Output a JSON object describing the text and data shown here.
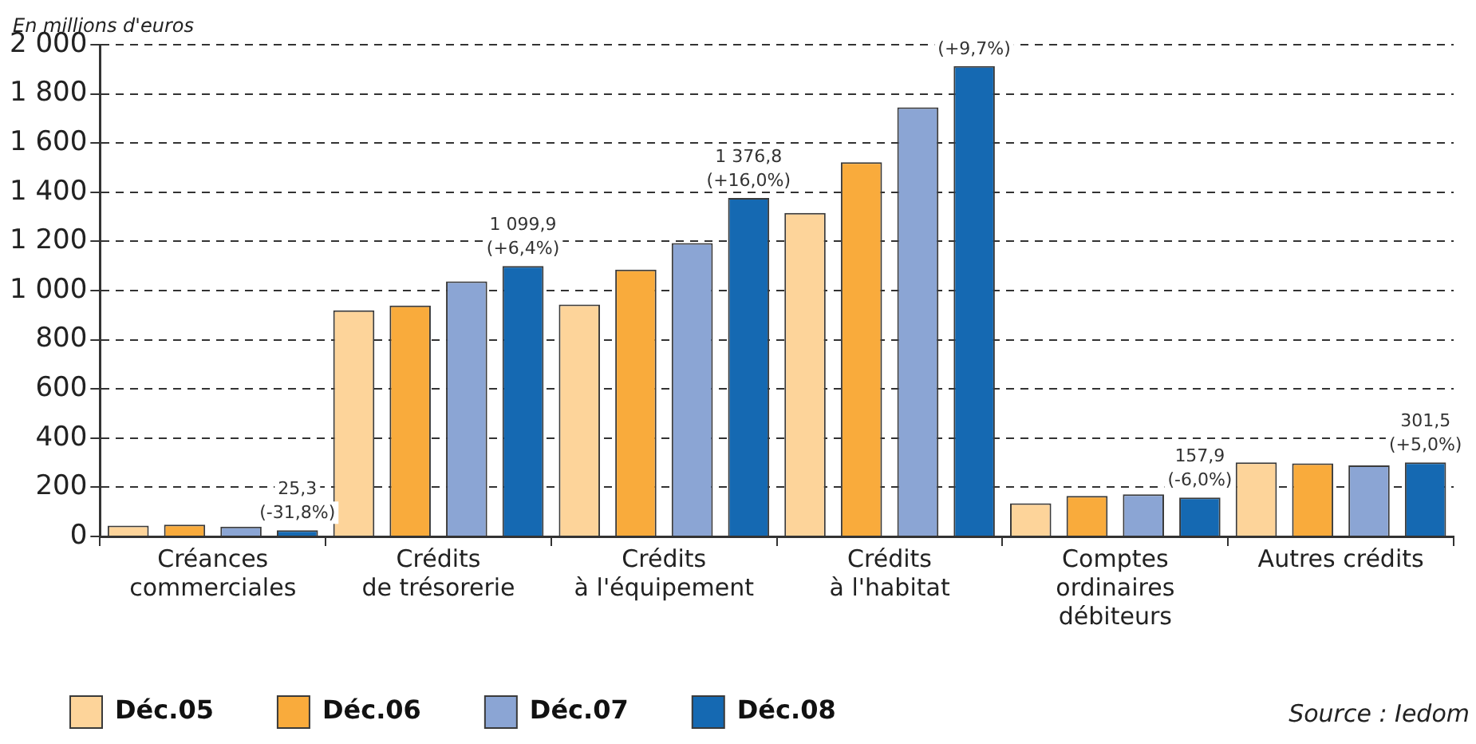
{
  "chart_data": {
    "type": "bar",
    "ylabel": "En millions d'euros",
    "categories": [
      "Créances\ncommerciales",
      "Crédits\nde trésorerie",
      "Crédits\nà l'équipement",
      "Crédits\nà l'habitat",
      "Comptes\nordinaires\ndébiteurs",
      "Autres crédits"
    ],
    "series": [
      {
        "name": "Déc.05",
        "color": "#fdd49a",
        "values": [
          44,
          920,
          943,
          1316,
          135,
          301
        ]
      },
      {
        "name": "Déc.06",
        "color": "#f9ab3c",
        "values": [
          48,
          939,
          1085,
          1522,
          165,
          297
        ]
      },
      {
        "name": "Déc.07",
        "color": "#8ba5d4",
        "values": [
          40,
          1037,
          1193,
          1745,
          171,
          289
        ]
      },
      {
        "name": "Déc.08",
        "color": "#1569b2",
        "values": [
          25.3,
          1099.9,
          1376.8,
          1913,
          157.9,
          301.5
        ],
        "value_labels": [
          "25,3\n(-31,8%)",
          "1 099,9\n(+6,4%)",
          "1 376,8\n(+16,0%)",
          null,
          "157,9\n(-6,0%)",
          "301,5\n(+5,0%)"
        ]
      }
    ],
    "ylim": [
      0,
      2000
    ],
    "yticks": [
      0,
      200,
      400,
      600,
      800,
      {
        "value": 1000,
        "label": "1 000"
      },
      {
        "value": 1200,
        "label": "1 200"
      },
      {
        "value": 1400,
        "label": "1 400"
      },
      {
        "value": 1600,
        "label": "1 600"
      },
      {
        "value": 1800,
        "label": "1 800"
      },
      {
        "value": 2000,
        "label": "2 000"
      }
    ],
    "grid": "y",
    "legend": "bottom left",
    "annotations": [
      "(+9,7%)",
      "Source : Iedom"
    ]
  }
}
